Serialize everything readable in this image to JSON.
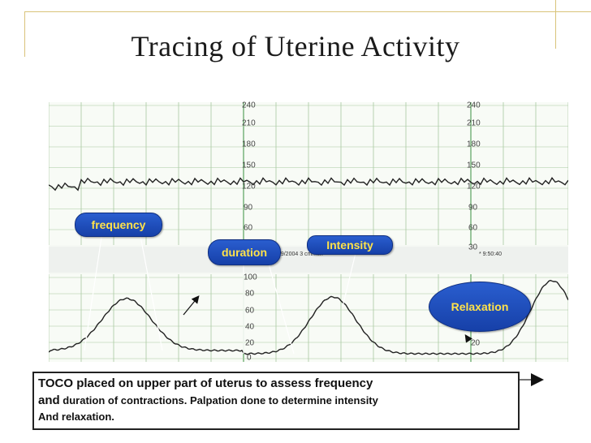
{
  "slide": {
    "title": "Tracing of Uterine Activity"
  },
  "fhr_scale": {
    "left": [
      "240",
      "210",
      "180",
      "150",
      "120",
      "90",
      "60",
      "30"
    ],
    "right": [
      "240",
      "210",
      "180",
      "150",
      "120",
      "90",
      "60",
      "30"
    ]
  },
  "toco_scale": {
    "left": [
      "100",
      "80",
      "60",
      "40",
      "20",
      "0"
    ],
    "right": [
      "20"
    ]
  },
  "paper_text": {
    "date_speed": "9/9/2004  3 cm/min",
    "time": "* 9:50:40"
  },
  "labels": {
    "frequency": "frequency",
    "duration": "duration",
    "intensity": "Intensity",
    "relaxation": "Relaxation"
  },
  "caption": {
    "line1": "TOCO placed on upper part of uterus to assess frequency",
    "line2_lead": "and",
    "line2_rest": " duration of contractions. Palpation done to determine intensity",
    "line3": "And relaxation."
  },
  "colors": {
    "gridline": "#a7c9a0",
    "gridline_major": "#5aa25f",
    "trace": "#222222",
    "bubble_text": "#ffe24a",
    "bubble_bg": "#1f4fc0",
    "frame": "#d9c37a"
  }
}
